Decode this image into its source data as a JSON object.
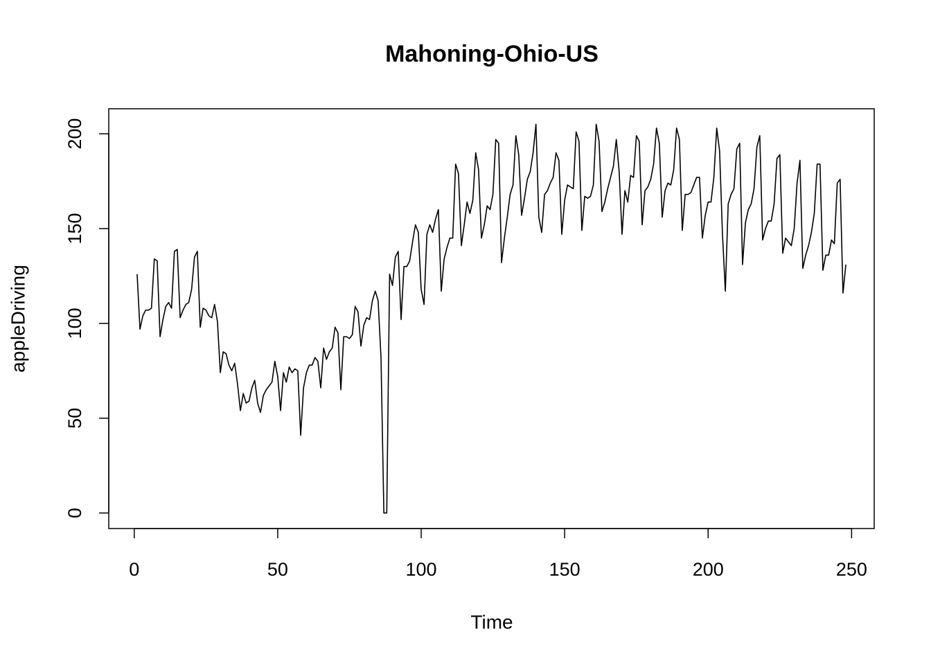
{
  "chart_data": {
    "type": "line",
    "title": "Mahoning-Ohio-US",
    "x_label": "Time",
    "y_label": "appleDriving",
    "color": "#000000",
    "xlim": [
      -8.88,
      257.88
    ],
    "ylim": [
      -8.2,
      213.2
    ],
    "xticks": [
      0,
      50,
      100,
      150,
      200,
      250
    ],
    "yticks": [
      0,
      50,
      100,
      150,
      200
    ],
    "x": [
      1,
      2,
      3,
      4,
      5,
      6,
      7,
      8,
      9,
      10,
      11,
      12,
      13,
      14,
      15,
      16,
      17,
      18,
      19,
      20,
      21,
      22,
      23,
      24,
      25,
      26,
      27,
      28,
      29,
      30,
      31,
      32,
      33,
      34,
      35,
      36,
      37,
      38,
      39,
      40,
      41,
      42,
      43,
      44,
      45,
      46,
      47,
      48,
      49,
      50,
      51,
      52,
      53,
      54,
      55,
      56,
      57,
      58,
      59,
      60,
      61,
      62,
      63,
      64,
      65,
      66,
      67,
      68,
      69,
      70,
      71,
      72,
      73,
      74,
      75,
      76,
      77,
      78,
      79,
      80,
      81,
      82,
      83,
      84,
      85,
      86,
      87,
      88,
      89,
      90,
      91,
      92,
      93,
      94,
      95,
      96,
      97,
      98,
      99,
      100,
      101,
      102,
      103,
      104,
      105,
      106,
      107,
      108,
      109,
      110,
      111,
      112,
      113,
      114,
      115,
      116,
      117,
      118,
      119,
      120,
      121,
      122,
      123,
      124,
      125,
      126,
      127,
      128,
      129,
      130,
      131,
      132,
      133,
      134,
      135,
      136,
      137,
      138,
      139,
      140,
      141,
      142,
      143,
      144,
      145,
      146,
      147,
      148,
      149,
      150,
      151,
      152,
      153,
      154,
      155,
      156,
      157,
      158,
      159,
      160,
      161,
      162,
      163,
      164,
      165,
      166,
      167,
      168,
      169,
      170,
      171,
      172,
      173,
      174,
      175,
      176,
      177,
      178,
      179,
      180,
      181,
      182,
      183,
      184,
      185,
      186,
      187,
      188,
      189,
      190,
      191,
      192,
      193,
      194,
      195,
      196,
      197,
      198,
      199,
      200,
      201,
      202,
      203,
      204,
      205,
      206,
      207,
      208,
      209,
      210,
      211,
      212,
      213,
      214,
      215,
      216,
      217,
      218,
      219,
      220,
      221,
      222,
      223,
      224,
      225,
      226,
      227,
      228,
      229,
      230,
      231,
      232,
      233,
      234,
      235,
      236,
      237,
      238,
      239,
      240,
      241,
      242,
      243,
      244,
      245,
      246,
      247,
      248
    ],
    "values": [
      126,
      97,
      104,
      107,
      107,
      108,
      134,
      133,
      93,
      102,
      109,
      111,
      108,
      138,
      139,
      103,
      107,
      110,
      111,
      118,
      135,
      138,
      98,
      108,
      107,
      104,
      103,
      110,
      101,
      74,
      85,
      84,
      78,
      75,
      79,
      68,
      54,
      63,
      58,
      59,
      66,
      70,
      58,
      53,
      62,
      65,
      67,
      69,
      80,
      72,
      54,
      74,
      69,
      77,
      74,
      76,
      75,
      41,
      66,
      74,
      78,
      78,
      82,
      80,
      66,
      87,
      81,
      85,
      87,
      98,
      95,
      65,
      93,
      93,
      92,
      94,
      109,
      106,
      88,
      99,
      103,
      102,
      112,
      117,
      112,
      82,
      0,
      0,
      126,
      120,
      135,
      138,
      102,
      130,
      130,
      133,
      143,
      152,
      148,
      118,
      110,
      147,
      152,
      148,
      155,
      160,
      117,
      134,
      140,
      145,
      145,
      184,
      179,
      141,
      152,
      164,
      158,
      165,
      190,
      181,
      145,
      152,
      162,
      160,
      168,
      197,
      195,
      132,
      145,
      156,
      168,
      173,
      199,
      189,
      157,
      166,
      176,
      180,
      190,
      205,
      156,
      148,
      168,
      170,
      174,
      177,
      190,
      186,
      147,
      165,
      173,
      172,
      171,
      201,
      196,
      149,
      167,
      166,
      167,
      173,
      205,
      196,
      159,
      164,
      171,
      177,
      183,
      197,
      180,
      147,
      170,
      164,
      178,
      177,
      199,
      196,
      152,
      170,
      172,
      176,
      184,
      203,
      195,
      156,
      170,
      174,
      173,
      181,
      203,
      197,
      149,
      168,
      168,
      169,
      173,
      177,
      177,
      145,
      157,
      164,
      164,
      177,
      203,
      191,
      147,
      117,
      163,
      168,
      171,
      192,
      195,
      131,
      153,
      160,
      163,
      171,
      193,
      199,
      144,
      150,
      154,
      154,
      163,
      187,
      189,
      137,
      145,
      143,
      141,
      150,
      174,
      186,
      129,
      136,
      141,
      148,
      158,
      184,
      184,
      128,
      136,
      136,
      144,
      142,
      174,
      176,
      116,
      131
    ]
  }
}
